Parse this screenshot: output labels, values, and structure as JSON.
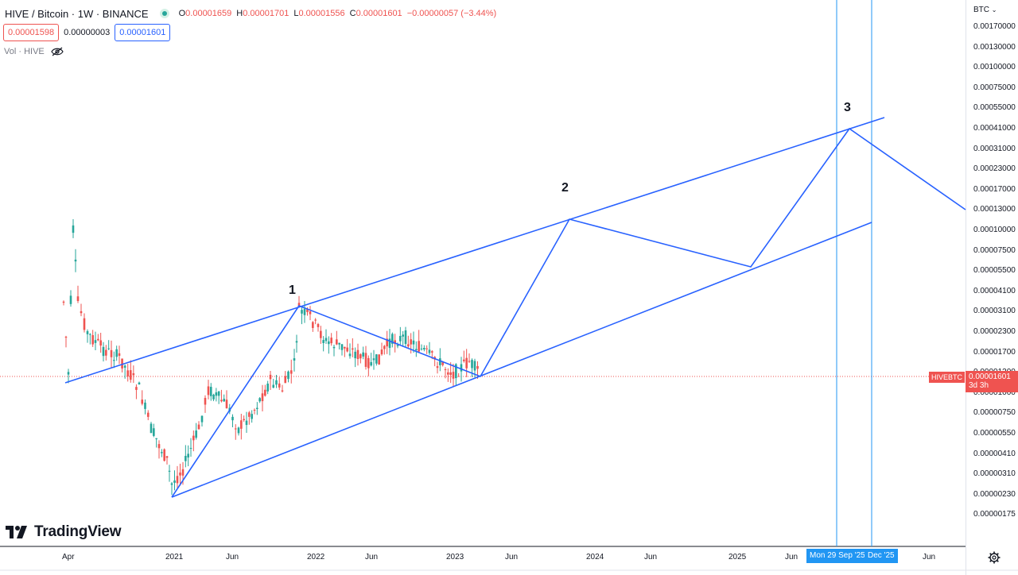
{
  "header": {
    "symbol_title": "HIVE / Bitcoin · 1W · BINANCE",
    "ohlc": [
      {
        "key": "O",
        "value": "0.00001659"
      },
      {
        "key": "H",
        "value": "0.00001701"
      },
      {
        "key": "L",
        "value": "0.00001556"
      },
      {
        "key": "C",
        "value": "0.00001601"
      }
    ],
    "change": "−0.00000057 (−3.44%)",
    "sell_price": "0.00001598",
    "spread": "0.00000003",
    "buy_price": "0.00001601",
    "volume_label": "Vol · HIVE"
  },
  "waves": {
    "w1": "1",
    "w2": "2",
    "w3": "3"
  },
  "price_axis": {
    "currency": "BTC",
    "ticks": [
      "0.00170000",
      "0.00130000",
      "0.00100000",
      "0.00075000",
      "0.00055000",
      "0.00041000",
      "0.00031000",
      "0.00023000",
      "0.00017000",
      "0.00013000",
      "0.00010000",
      "0.00007500",
      "0.00005500",
      "0.00004100",
      "0.00003100",
      "0.00002300",
      "0.00001700",
      "0.00001300",
      "0.00001000",
      "0.00000750",
      "0.00000550",
      "0.00000410",
      "0.00000310",
      "0.00000230",
      "0.00000175"
    ],
    "last_price": "0.00001601",
    "countdown": "3d 3h",
    "symbol_tag": "HIVEBTC"
  },
  "time_axis": {
    "ticks": [
      "Apr",
      "2021",
      "Jun",
      "2022",
      "Jun",
      "2023",
      "Jun",
      "2024",
      "Jun",
      "2025",
      "Jun",
      "Jun"
    ],
    "date_tag_1": "Mon 29 Sep '25",
    "date_tag_2": "Dec '25"
  },
  "branding": {
    "logo_text": "TradingView"
  },
  "colors": {
    "up": "#26a69a",
    "down": "#ef5350",
    "drawing": "#2962ff",
    "vline": "#2196f3",
    "price_line": "#ef5350"
  },
  "icons": {
    "visibility": "eye-crossed-icon",
    "settings": "gear-icon",
    "live": "live-dot-icon",
    "currency": "chevron-down-icon"
  }
}
